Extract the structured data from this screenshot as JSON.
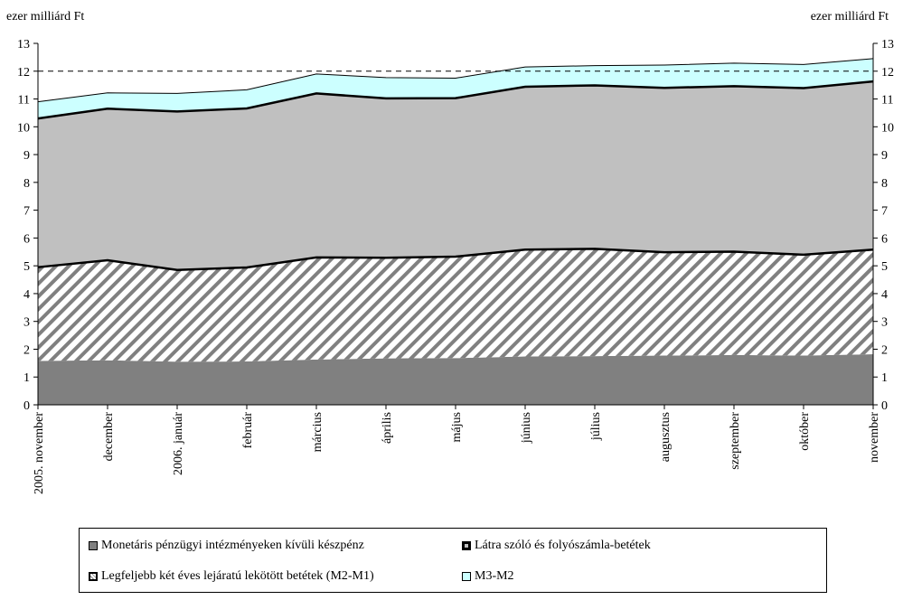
{
  "units": {
    "left": "ezer milliárd Ft",
    "right": "ezer milliárd Ft"
  },
  "chart_data": {
    "type": "area",
    "stacked": true,
    "categories": [
      "2005. november",
      "december",
      "2006. január",
      "február",
      "március",
      "április",
      "május",
      "június",
      "július",
      "augusztus",
      "szeptember",
      "október",
      "november"
    ],
    "ylim": [
      0,
      13
    ],
    "yticks": [
      0,
      1,
      2,
      3,
      4,
      5,
      6,
      7,
      8,
      9,
      10,
      11,
      12,
      13
    ],
    "reference_line": 12,
    "series": [
      {
        "name": "Monetáris pénzügyi intézményeken kívüli készpénz",
        "color": "#808080",
        "values": [
          1.58,
          1.6,
          1.55,
          1.56,
          1.63,
          1.67,
          1.68,
          1.74,
          1.75,
          1.77,
          1.79,
          1.77,
          1.82
        ]
      },
      {
        "name": "Legfeljebb két éves lejáratú lekötött betétek (M2-M1)",
        "color": "#ffffff",
        "pattern": "diagonal-hatch",
        "values": [
          3.37,
          3.6,
          3.3,
          3.38,
          3.67,
          3.62,
          3.65,
          3.84,
          3.86,
          3.72,
          3.72,
          3.63,
          3.76
        ]
      },
      {
        "name": "Látra szóló és folyószámla-betétek",
        "color": "#c0c0c0",
        "values": [
          5.35,
          5.45,
          5.7,
          5.72,
          5.9,
          5.73,
          5.7,
          5.86,
          5.88,
          5.91,
          5.95,
          5.99,
          6.05
        ]
      },
      {
        "name": "M3-M2",
        "color": "#ccffff",
        "values": [
          0.6,
          0.57,
          0.65,
          0.67,
          0.7,
          0.75,
          0.72,
          0.71,
          0.71,
          0.82,
          0.83,
          0.85,
          0.82
        ]
      }
    ],
    "legend": {
      "position": "bottom",
      "items": [
        "Monetáris pénzügyi intézményeken kívüli készpénz",
        "Látra szóló és folyószámla-betétek",
        "Legfeljebb két éves lejáratú lekötött betétek (M2-M1)",
        "M3-M2"
      ]
    }
  }
}
